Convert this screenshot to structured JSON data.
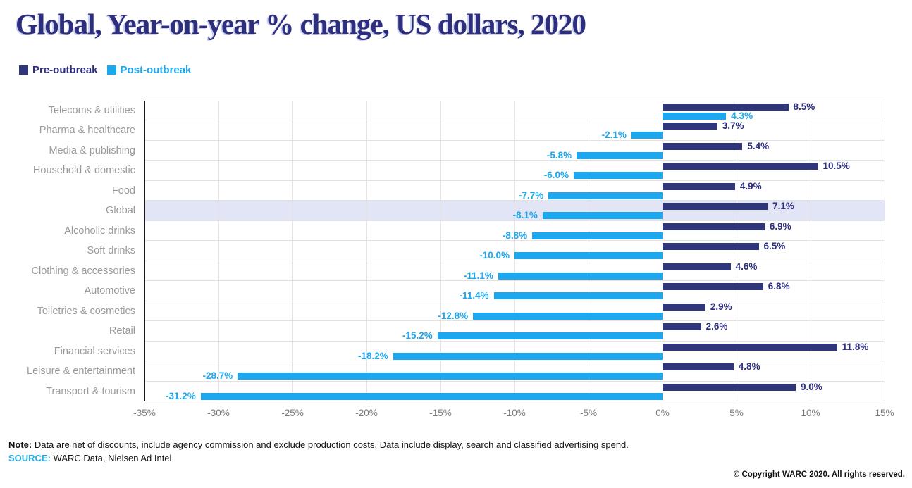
{
  "title": "Global, Year-on-year % change, US dollars, 2020",
  "legend": [
    {
      "label": "Pre-outbreak",
      "color": "#2f3679",
      "text_color": "#2d2e7e"
    },
    {
      "label": "Post-outbreak",
      "color": "#1ca7ee",
      "text_color": "#1ca7ee"
    }
  ],
  "chart_data": {
    "type": "bar",
    "orientation": "horizontal",
    "title": "Global, Year-on-year % change, US dollars, 2020",
    "categories": [
      "Telecoms & utilities",
      "Pharma & healthcare",
      "Media & publishing",
      "Household & domestic",
      "Food",
      "Global",
      "Alcoholic drinks",
      "Soft drinks",
      "Clothing & accessories",
      "Automotive",
      "Toiletries & cosmetics",
      "Retail",
      "Financial services",
      "Leisure & entertainment",
      "Transport & tourism"
    ],
    "series": [
      {
        "name": "Pre-outbreak",
        "color": "#2f3679",
        "label_color": "#2d2e7e",
        "values": [
          8.5,
          3.7,
          5.4,
          10.5,
          4.9,
          7.1,
          6.9,
          6.5,
          4.6,
          6.8,
          2.9,
          2.6,
          11.8,
          4.8,
          9.0
        ]
      },
      {
        "name": "Post-outbreak",
        "color": "#1ca7ee",
        "label_color": "#1ca7ee",
        "values": [
          4.3,
          -2.1,
          -5.8,
          -6.0,
          -7.7,
          -8.1,
          -8.8,
          -10.0,
          -11.1,
          -11.4,
          -12.8,
          -15.2,
          -18.2,
          -28.7,
          -31.2
        ]
      }
    ],
    "highlighted_category": "Global",
    "highlight_color": "#e2e5f5",
    "xlim": [
      -35,
      15
    ],
    "tick_step": 5,
    "x_ticks": [
      "-35%",
      "-30%",
      "-25%",
      "-20%",
      "-15%",
      "-10%",
      "-5%",
      "0%",
      "5%",
      "10%",
      "15%"
    ],
    "value_suffix": "%",
    "grid": true,
    "legend_position": "top-left"
  },
  "footer": {
    "note_label": "Note:",
    "note_text": " Data are net of discounts, include agency commission and exclude production costs. Data include display, search and classified advertising spend.",
    "source_label": "SOURCE:",
    "source_text": " WARC Data, Nielsen Ad Intel",
    "copyright": "© Copyright WARC 2020. All rights reserved."
  }
}
